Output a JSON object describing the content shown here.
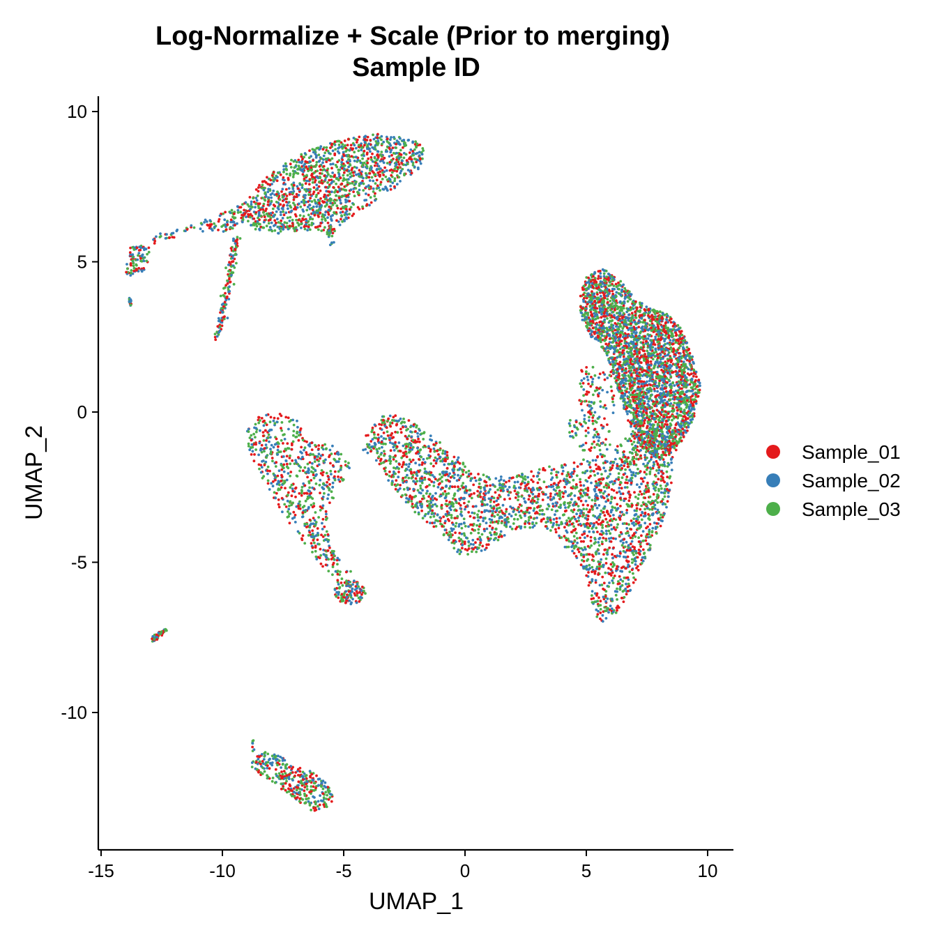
{
  "chart_data": {
    "type": "scatter",
    "title": "Log-Normalize + Scale (Prior to merging)",
    "subtitle": "Sample ID",
    "xlabel": "UMAP_1",
    "ylabel": "UMAP_2",
    "xlim": [
      -15.2,
      11
    ],
    "ylim": [
      -14.4,
      10.6
    ],
    "xticks": [
      -15,
      -10,
      -5,
      0,
      5,
      10
    ],
    "yticks": [
      -10,
      -5,
      0,
      5,
      10
    ],
    "grid": false,
    "legend_position": "right",
    "series": [
      {
        "name": "Sample_01",
        "color": "#E41A1C"
      },
      {
        "name": "Sample_02",
        "color": "#377EB8"
      },
      {
        "name": "Sample_03",
        "color": "#4DAF4A"
      }
    ],
    "clusters": [
      {
        "shape": "poly",
        "n": 1400,
        "pts": [
          [
            -9.2,
            6.9
          ],
          [
            -8.1,
            7.9
          ],
          [
            -6.8,
            8.6
          ],
          [
            -5.2,
            9.05
          ],
          [
            -3.6,
            9.25
          ],
          [
            -2.2,
            9.1
          ],
          [
            -1.7,
            8.8
          ],
          [
            -1.75,
            8.2
          ],
          [
            -2.6,
            7.6
          ],
          [
            -3.6,
            7.05
          ],
          [
            -4.6,
            6.55
          ],
          [
            -5.4,
            6.0
          ],
          [
            -6.6,
            6.05
          ],
          [
            -7.6,
            5.9
          ],
          [
            -8.6,
            6.0
          ],
          [
            -9.2,
            6.4
          ]
        ]
      },
      {
        "shape": "poly",
        "n": 110,
        "pts": [
          [
            -11.0,
            6.3
          ],
          [
            -9.2,
            6.9
          ],
          [
            -9.0,
            6.4
          ],
          [
            -9.6,
            6.0
          ],
          [
            -11.2,
            6.0
          ],
          [
            -12.4,
            5.7
          ],
          [
            -13.2,
            5.5
          ],
          [
            -12.8,
            5.9
          ],
          [
            -12.2,
            6.05
          ]
        ]
      },
      {
        "shape": "poly",
        "n": 90,
        "pts": [
          [
            -13.9,
            5.4
          ],
          [
            -13.4,
            5.7
          ],
          [
            -13.0,
            5.5
          ],
          [
            -13.1,
            4.8
          ],
          [
            -13.6,
            4.5
          ],
          [
            -14.0,
            4.6
          ]
        ]
      },
      {
        "shape": "line",
        "n": 14,
        "p0": [
          -13.8,
          3.8
        ],
        "p1": [
          -13.8,
          3.5
        ],
        "w": 0.06
      },
      {
        "shape": "line",
        "n": 140,
        "p0": [
          -9.4,
          5.8
        ],
        "p1": [
          -10.2,
          2.5
        ],
        "w": 0.16
      },
      {
        "shape": "line",
        "n": 24,
        "p0": [
          -5.6,
          6.3
        ],
        "p1": [
          -5.5,
          5.6
        ],
        "w": 0.12
      },
      {
        "shape": "poly",
        "n": 660,
        "pts": [
          [
            -9.0,
            -0.6
          ],
          [
            -8.5,
            -0.1
          ],
          [
            -7.6,
            -0.05
          ],
          [
            -6.9,
            -0.3
          ],
          [
            -6.5,
            -1.0
          ],
          [
            -5.4,
            -1.1
          ],
          [
            -4.7,
            -1.8
          ],
          [
            -5.1,
            -2.4
          ],
          [
            -5.7,
            -3.3
          ],
          [
            -5.6,
            -4.3
          ],
          [
            -5.1,
            -5.0
          ],
          [
            -4.7,
            -5.3
          ],
          [
            -5.2,
            -5.7
          ],
          [
            -5.9,
            -5.2
          ],
          [
            -6.7,
            -4.3
          ],
          [
            -7.6,
            -3.3
          ],
          [
            -8.5,
            -2.0
          ],
          [
            -9.0,
            -1.2
          ]
        ]
      },
      {
        "shape": "ellipse",
        "n": 110,
        "c": [
          -4.75,
          -6.0
        ],
        "rx": 0.65,
        "ry": 0.4
      },
      {
        "shape": "poly",
        "n": 2600,
        "pts": [
          [
            -4.2,
            -0.9
          ],
          [
            -3.4,
            -0.1
          ],
          [
            -2.6,
            -0.1
          ],
          [
            -1.2,
            -0.9
          ],
          [
            -0.3,
            -1.5
          ],
          [
            0.5,
            -2.0
          ],
          [
            1.2,
            -2.2
          ],
          [
            2.5,
            -2.0
          ],
          [
            3.5,
            -1.8
          ],
          [
            5.3,
            -1.5
          ],
          [
            6.2,
            -1.2
          ],
          [
            7.1,
            -0.5
          ],
          [
            8.0,
            -0.5
          ],
          [
            8.6,
            -1.3
          ],
          [
            8.5,
            -2.5
          ],
          [
            8.2,
            -3.6
          ],
          [
            7.5,
            -4.8
          ],
          [
            6.8,
            -6.0
          ],
          [
            6.2,
            -6.8
          ],
          [
            5.4,
            -7.1
          ],
          [
            5.2,
            -6.2
          ],
          [
            4.7,
            -5.0
          ],
          [
            3.3,
            -3.8
          ],
          [
            2.0,
            -3.9
          ],
          [
            0.8,
            -4.6
          ],
          [
            -0.2,
            -4.8
          ],
          [
            -1.0,
            -4.0
          ],
          [
            -2.0,
            -3.4
          ],
          [
            -3.0,
            -2.5
          ]
        ]
      },
      {
        "shape": "poly",
        "n": 3000,
        "pts": [
          [
            4.7,
            3.8
          ],
          [
            5.0,
            4.5
          ],
          [
            5.7,
            4.8
          ],
          [
            6.4,
            4.4
          ],
          [
            7.0,
            3.8
          ],
          [
            7.6,
            3.45
          ],
          [
            8.3,
            3.3
          ],
          [
            8.9,
            2.8
          ],
          [
            9.4,
            1.8
          ],
          [
            9.7,
            0.9
          ],
          [
            9.6,
            0.1
          ],
          [
            9.2,
            -0.6
          ],
          [
            8.7,
            -1.3
          ],
          [
            8.0,
            -1.6
          ],
          [
            7.3,
            -1.2
          ],
          [
            6.7,
            -0.3
          ],
          [
            6.2,
            1.0
          ],
          [
            5.8,
            2.0
          ],
          [
            5.2,
            2.5
          ],
          [
            4.8,
            3.1
          ]
        ]
      },
      {
        "shape": "line",
        "n": 12,
        "p0": [
          -3.6,
          -1.0
        ],
        "p1": [
          -4.4,
          -1.4
        ],
        "w": 0.15
      },
      {
        "shape": "ellipse",
        "n": 20,
        "c": [
          4.5,
          -0.5
        ],
        "rx": 0.25,
        "ry": 0.45
      },
      {
        "shape": "poly",
        "n": 150,
        "pts": [
          [
            4.7,
            1.5
          ],
          [
            6.3,
            1.5
          ],
          [
            6.0,
            -1.3
          ],
          [
            4.7,
            -1.3
          ]
        ]
      },
      {
        "shape": "line",
        "n": 55,
        "p0": [
          -12.3,
          -7.2
        ],
        "p1": [
          -12.9,
          -7.6
        ],
        "w": 0.08
      },
      {
        "shape": "poly",
        "n": 330,
        "pts": [
          [
            -8.8,
            -11.5
          ],
          [
            -8.2,
            -11.3
          ],
          [
            -7.5,
            -11.5
          ],
          [
            -7.0,
            -11.8
          ],
          [
            -6.2,
            -12.0
          ],
          [
            -5.5,
            -12.5
          ],
          [
            -5.4,
            -13.1
          ],
          [
            -6.3,
            -13.3
          ],
          [
            -7.1,
            -12.8
          ],
          [
            -8.2,
            -12.2
          ],
          [
            -8.8,
            -11.9
          ]
        ]
      },
      {
        "shape": "line",
        "n": 8,
        "p0": [
          -8.8,
          -10.8
        ],
        "p1": [
          -8.7,
          -11.3
        ],
        "w": 0.05
      }
    ]
  },
  "legend": {
    "items": [
      {
        "label": "Sample_01",
        "color": "#E41A1C"
      },
      {
        "label": "Sample_02",
        "color": "#377EB8"
      },
      {
        "label": "Sample_03",
        "color": "#4DAF4A"
      }
    ]
  }
}
